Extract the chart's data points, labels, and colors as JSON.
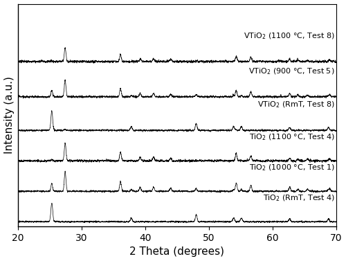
{
  "xlabel": "2 Theta (degrees)",
  "ylabel": "Intensity (a.u.)",
  "xlim": [
    20,
    70
  ],
  "ylim": [
    -0.15,
    6.8
  ],
  "xticks": [
    20,
    30,
    40,
    50,
    60,
    70
  ],
  "figsize": [
    5.0,
    3.77
  ],
  "dpi": 100,
  "labels": [
    "TiO$_2$ (RmT, Test 4)",
    "TiO$_2$ (1000 °C, Test 1)",
    "TiO$_2$ (1100 °C, Test 4)",
    "VTiO$_2$ (RmT, Test 8)",
    "VTiO$_2$ (900 °C, Test 5)",
    "VTiO$_2$ (1100 °C, Test 8)"
  ],
  "offsets": [
    0.0,
    0.95,
    1.9,
    2.85,
    3.9,
    5.0
  ],
  "rutile_peaks": [
    27.4,
    36.1,
    39.2,
    41.3,
    44.0,
    54.3,
    56.6,
    62.7,
    64.0,
    65.5,
    69.0
  ],
  "anatase_peaks": [
    25.3,
    37.8,
    48.0,
    53.9,
    55.1,
    62.7,
    68.8
  ],
  "rutile_intensities": [
    1.0,
    0.5,
    0.2,
    0.2,
    0.15,
    0.4,
    0.3,
    0.15,
    0.1,
    0.1,
    0.1
  ],
  "anatase_intensities": [
    1.0,
    0.2,
    0.35,
    0.2,
    0.2,
    0.15,
    0.15
  ],
  "background_color": "#ffffff",
  "line_color": "#000000",
  "label_fontsize": 8.0,
  "axis_label_fontsize": 11,
  "tick_fontsize": 10
}
